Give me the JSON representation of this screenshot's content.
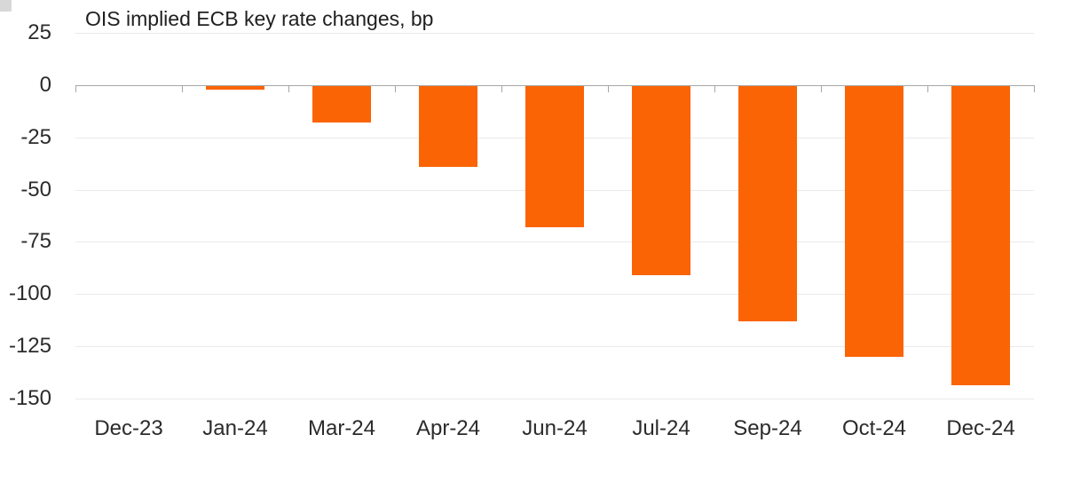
{
  "page": {
    "background": "#FFFFFF",
    "corner_square_color": "#D8D8D8"
  },
  "chart_data": {
    "type": "bar",
    "title": "OIS implied ECB key rate changes, bp",
    "xlabel": "",
    "ylabel": "",
    "categories": [
      "Dec-23",
      "Jan-24",
      "Mar-24",
      "Apr-24",
      "Jun-24",
      "Jul-24",
      "Sep-24",
      "Oct-24",
      "Dec-24"
    ],
    "values": [
      0,
      -2,
      -18,
      -39,
      -68,
      -91,
      -113,
      -130,
      -144
    ],
    "ylim": [
      -150,
      25
    ],
    "yticks": [
      25,
      0,
      -25,
      -50,
      -75,
      -100,
      -125,
      -150
    ],
    "grid": true,
    "legend": false,
    "bar_color": "#FA6405",
    "grid_color": "#EAEAEA",
    "axis_color": "#A6A6A6",
    "text_color": "#2B2B2B",
    "title_color": "#1F1F1F"
  }
}
